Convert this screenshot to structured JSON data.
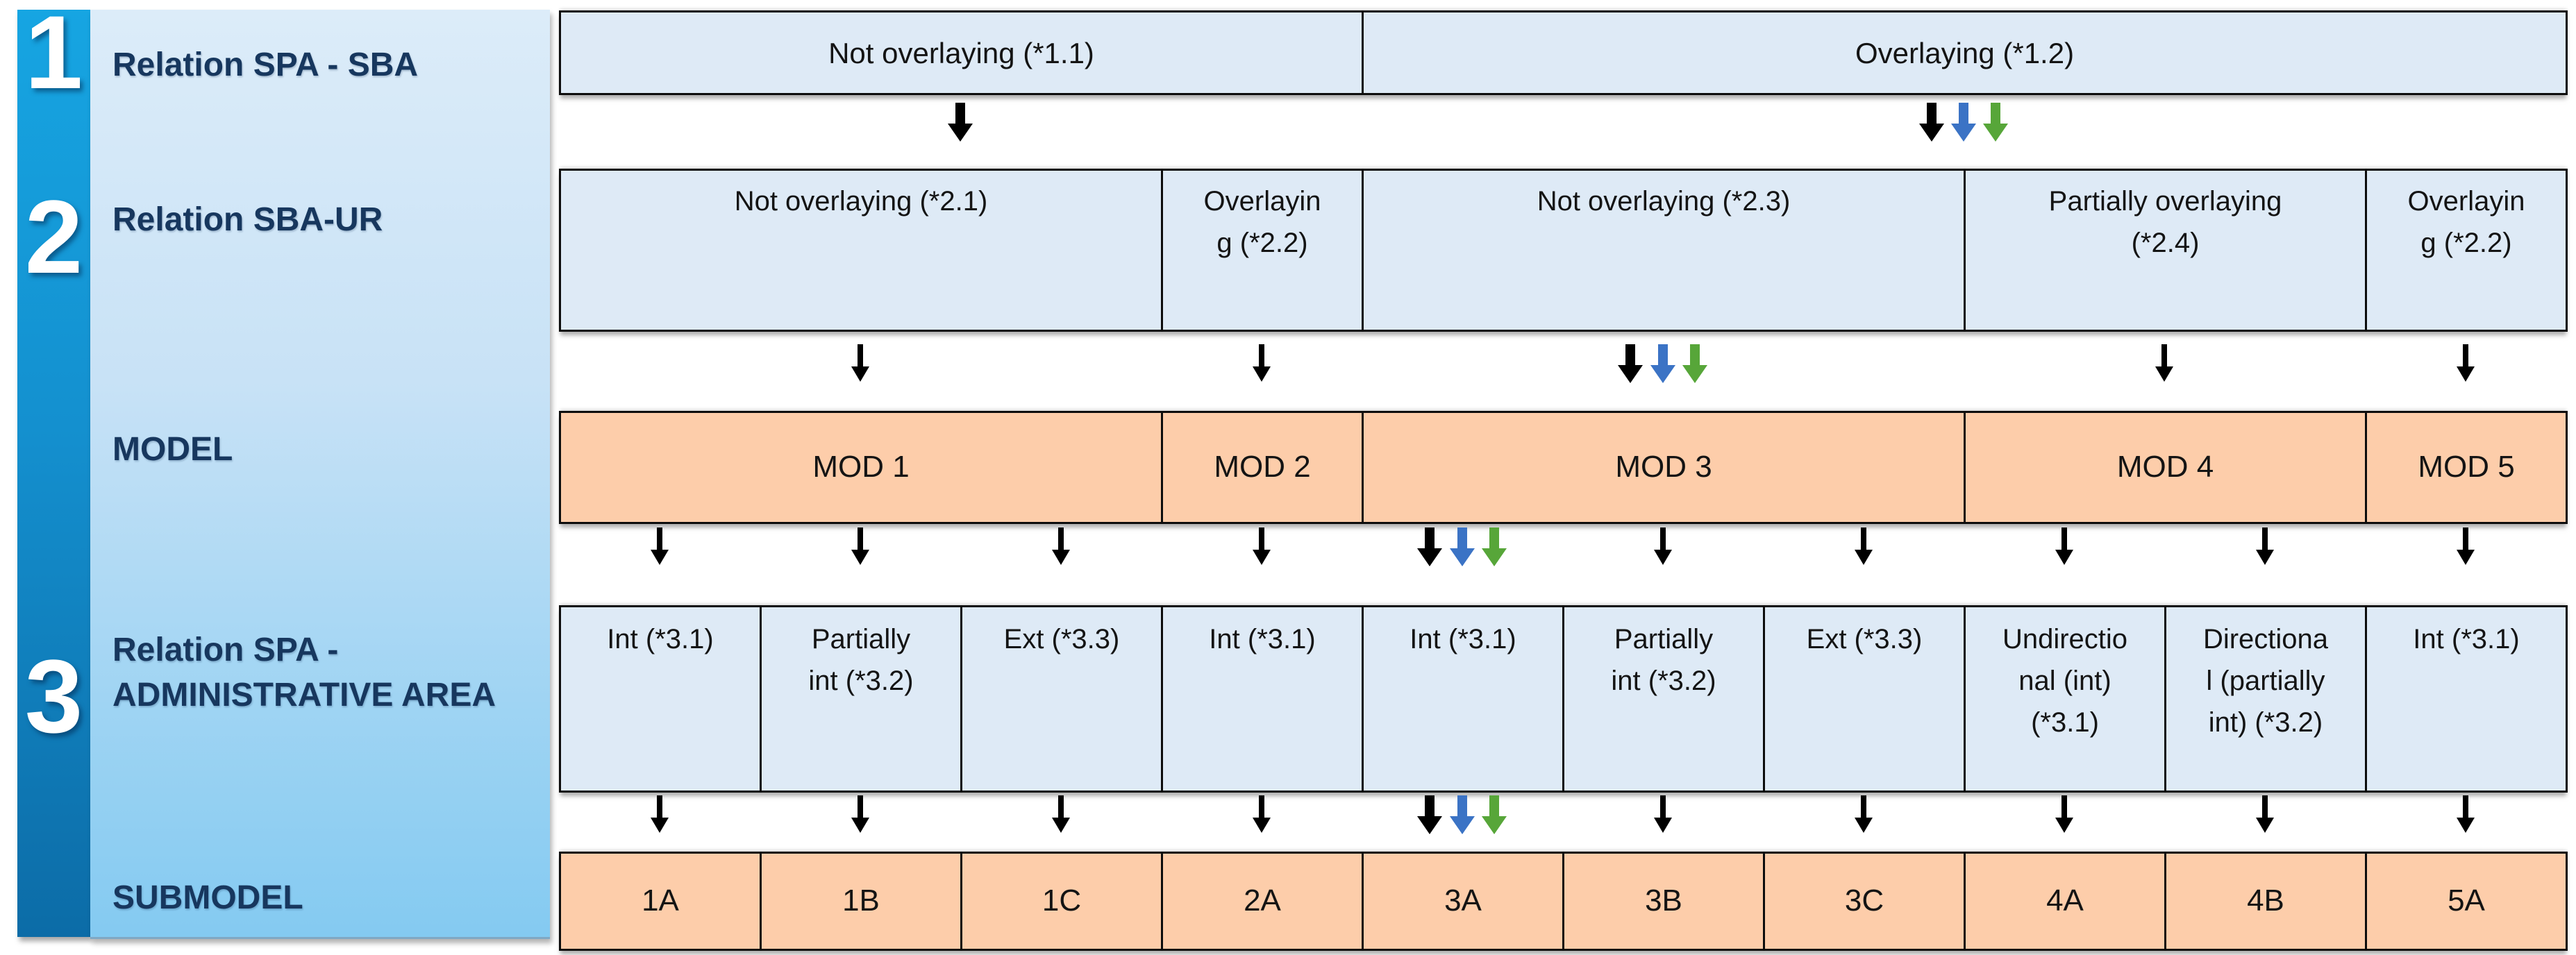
{
  "sidebar": {
    "steps": [
      {
        "number": "1",
        "label": "Relation SPA - SBA"
      },
      {
        "number": "2",
        "label": "Relation SBA-UR"
      },
      {
        "number": "",
        "label": "MODEL"
      },
      {
        "number": "3",
        "label": "Relation SPA -\nADMINISTRATIVE AREA"
      },
      {
        "number": "",
        "label": "SUBMODEL"
      }
    ]
  },
  "table": {
    "columns": 10,
    "rows": [
      {
        "name": "relation-spa-sba",
        "kind": "condition",
        "cells": [
          {
            "label": "Not overlaying (*1.1)",
            "span": 4
          },
          {
            "label": "Overlaying (*1.2)",
            "span": 6
          }
        ]
      },
      {
        "name": "relation-sba-ur",
        "kind": "condition",
        "cells": [
          {
            "label": "Not overlaying (*2.1)",
            "span": 3
          },
          {
            "label": "Overlayin\ng (*2.2)",
            "span": 1
          },
          {
            "label": "Not overlaying (*2.3)",
            "span": 3
          },
          {
            "label": "Partially overlaying\n(*2.4)",
            "span": 2
          },
          {
            "label": "Overlayin\ng (*2.2)",
            "span": 1
          }
        ]
      },
      {
        "name": "model",
        "kind": "model",
        "cells": [
          {
            "label": "MOD 1",
            "span": 3
          },
          {
            "label": "MOD 2",
            "span": 1
          },
          {
            "label": "MOD 3",
            "span": 3
          },
          {
            "label": "MOD 4",
            "span": 2
          },
          {
            "label": "MOD 5",
            "span": 1
          }
        ]
      },
      {
        "name": "relation-spa-administrative-area",
        "kind": "condition",
        "cells": [
          {
            "label": "Int (*3.1)",
            "span": 1
          },
          {
            "label": "Partially\nint (*3.2)",
            "span": 1
          },
          {
            "label": "Ext (*3.3)",
            "span": 1
          },
          {
            "label": "Int (*3.1)",
            "span": 1
          },
          {
            "label": "Int (*3.1)",
            "span": 1
          },
          {
            "label": "Partially\nint (*3.2)",
            "span": 1
          },
          {
            "label": "Ext (*3.3)",
            "span": 1
          },
          {
            "label": "Undirectio\nnal (int)\n(*3.1)",
            "span": 1
          },
          {
            "label": "Directiona\nl (partially\nint) (*3.2)",
            "span": 1
          },
          {
            "label": "Int (*3.1)",
            "span": 1
          }
        ]
      },
      {
        "name": "submodel",
        "kind": "model",
        "cells": [
          {
            "label": "1A",
            "span": 1
          },
          {
            "label": "1B",
            "span": 1
          },
          {
            "label": "1C",
            "span": 1
          },
          {
            "label": "2A",
            "span": 1
          },
          {
            "label": "3A",
            "span": 1
          },
          {
            "label": "3B",
            "span": 1
          },
          {
            "label": "3C",
            "span": 1
          },
          {
            "label": "4A",
            "span": 1
          },
          {
            "label": "4B",
            "span": 1
          },
          {
            "label": "5A",
            "span": 1
          }
        ]
      }
    ],
    "arrow_bands": [
      {
        "arrows": [
          {
            "u": 2.0,
            "color": "black",
            "style": "thick"
          },
          {
            "u": 6.84,
            "color": "black",
            "style": "thick"
          },
          {
            "u": 7.0,
            "color": "blue",
            "style": "thick"
          },
          {
            "u": 7.16,
            "color": "green",
            "style": "thick"
          }
        ]
      },
      {
        "arrows": [
          {
            "u": 1.5,
            "color": "black",
            "style": "thin"
          },
          {
            "u": 3.5,
            "color": "black",
            "style": "thin"
          },
          {
            "u": 5.34,
            "color": "black",
            "style": "thick"
          },
          {
            "u": 5.5,
            "color": "blue",
            "style": "thick"
          },
          {
            "u": 5.66,
            "color": "green",
            "style": "thick"
          },
          {
            "u": 8.0,
            "color": "black",
            "style": "thin"
          },
          {
            "u": 9.5,
            "color": "black",
            "style": "thin"
          }
        ]
      },
      {
        "arrows": [
          {
            "u": 0.5,
            "color": "black",
            "style": "thin"
          },
          {
            "u": 1.5,
            "color": "black",
            "style": "thin"
          },
          {
            "u": 2.5,
            "color": "black",
            "style": "thin"
          },
          {
            "u": 3.5,
            "color": "black",
            "style": "thin"
          },
          {
            "u": 4.34,
            "color": "black",
            "style": "thick"
          },
          {
            "u": 4.5,
            "color": "blue",
            "style": "thick"
          },
          {
            "u": 4.66,
            "color": "green",
            "style": "thick"
          },
          {
            "u": 5.5,
            "color": "black",
            "style": "thin"
          },
          {
            "u": 6.5,
            "color": "black",
            "style": "thin"
          },
          {
            "u": 7.5,
            "color": "black",
            "style": "thin"
          },
          {
            "u": 8.5,
            "color": "black",
            "style": "thin"
          },
          {
            "u": 9.5,
            "color": "black",
            "style": "thin"
          }
        ]
      },
      {
        "arrows": [
          {
            "u": 0.5,
            "color": "black",
            "style": "thin"
          },
          {
            "u": 1.5,
            "color": "black",
            "style": "thin"
          },
          {
            "u": 2.5,
            "color": "black",
            "style": "thin"
          },
          {
            "u": 3.5,
            "color": "black",
            "style": "thin"
          },
          {
            "u": 4.34,
            "color": "black",
            "style": "thick"
          },
          {
            "u": 4.5,
            "color": "blue",
            "style": "thick"
          },
          {
            "u": 4.66,
            "color": "green",
            "style": "thick"
          },
          {
            "u": 5.5,
            "color": "black",
            "style": "thin"
          },
          {
            "u": 6.5,
            "color": "black",
            "style": "thin"
          },
          {
            "u": 7.5,
            "color": "black",
            "style": "thin"
          },
          {
            "u": 8.5,
            "color": "black",
            "style": "thin"
          },
          {
            "u": 9.5,
            "color": "black",
            "style": "thin"
          }
        ]
      }
    ]
  },
  "colors": {
    "cell_blue": "#deeaf6",
    "cell_orange": "#fdcdaa",
    "arrow_black": "#000000",
    "arrow_blue": "#3b73c5",
    "arrow_green": "#57a639",
    "sidebar_text": "#17375e",
    "strip_top": "#16a5e2",
    "strip_bottom": "#0c6ca7",
    "panel_top": "#dcecf9",
    "panel_bottom": "#84caf1"
  }
}
